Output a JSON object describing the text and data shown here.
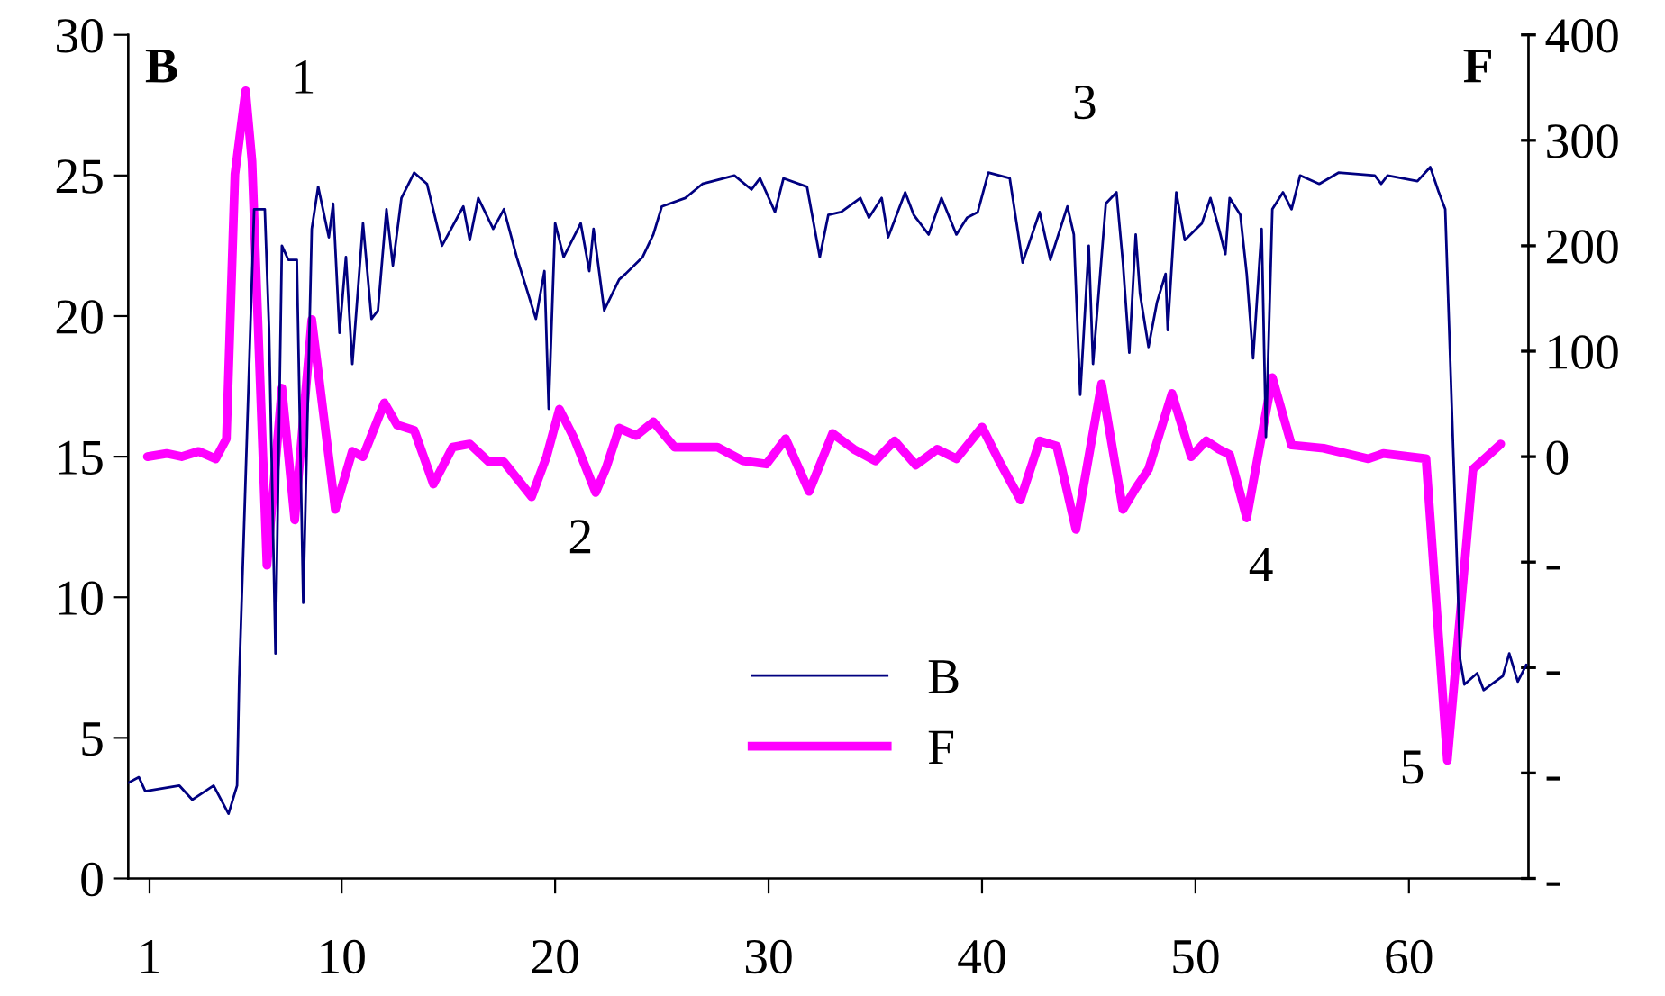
{
  "chart_data": {
    "type": "line",
    "ylabel": "B",
    "y2label": "F",
    "xlim": [
      0,
      65.6
    ],
    "xticks": [
      1,
      10,
      20,
      30,
      40,
      50,
      60
    ],
    "ylim": [
      0,
      30
    ],
    "yticks": [
      0,
      5,
      10,
      15,
      20,
      25,
      30
    ],
    "y2lim": [
      -400,
      400
    ],
    "y2ticks": [
      {
        "value": -400,
        "label": "-"
      },
      {
        "value": -300,
        "label": "-"
      },
      {
        "value": -200,
        "label": "-"
      },
      {
        "value": -100,
        "label": "-"
      },
      0,
      100,
      200,
      300,
      400
    ],
    "grid": false,
    "legend": "bottom",
    "marker": "none",
    "line_style": "solid",
    "annotations": [
      "1",
      "2",
      "3",
      "4",
      "5"
    ],
    "series": [
      {
        "name": "B",
        "color": "#000080",
        "x": [
          0,
          0.5,
          0.8,
          2.4,
          3.0,
          4.0,
          4.7,
          5.1,
          5.2,
          5.9,
          6.4,
          6.6,
          6.9,
          7.2,
          7.5,
          7.9,
          8.2,
          8.6,
          8.9,
          9.4,
          9.6,
          9.9,
          10.2,
          10.5,
          11.0,
          11.4,
          11.7,
          12.1,
          12.4,
          12.8,
          13.4,
          14.0,
          14.7,
          15.7,
          16.0,
          16.4,
          17.1,
          17.6,
          18.2,
          19.1,
          19.5,
          19.7,
          20.0,
          20.4,
          21.2,
          21.6,
          21.8,
          22.3,
          23.0,
          23.3,
          24.1,
          24.6,
          25.0,
          26.1,
          26.9,
          28.4,
          29.2,
          29.6,
          30.3,
          30.7,
          31.8,
          32.4,
          32.8,
          33.4,
          34.3,
          34.7,
          35.3,
          35.6,
          36.4,
          36.8,
          37.5,
          38.1,
          38.8,
          39.3,
          39.8,
          40.3,
          41.3,
          41.9,
          42.7,
          43.2,
          44.0,
          44.3,
          44.6,
          45.0,
          45.2,
          45.8,
          46.3,
          46.6,
          46.9,
          47.2,
          47.4,
          47.8,
          48.2,
          48.6,
          48.7,
          49.1,
          49.5,
          50.3,
          50.7,
          51.1,
          51.4,
          51.6,
          52.1,
          52.4,
          52.7,
          53.1,
          53.3,
          53.6,
          54.1,
          54.5,
          54.9,
          55.8,
          56.7,
          58.4,
          58.7,
          59.0,
          60.4,
          61.0,
          61.4,
          61.7,
          62.4,
          62.6,
          63.2,
          63.5,
          64.4,
          64.7,
          65.1,
          65.5
        ],
        "values": [
          3.4,
          3.6,
          3.1,
          3.3,
          2.8,
          3.3,
          2.3,
          3.3,
          7.1,
          23.8,
          23.8,
          19.5,
          8.0,
          22.5,
          22.0,
          22.0,
          9.8,
          23.1,
          24.6,
          22.8,
          24.0,
          19.4,
          22.1,
          18.3,
          23.3,
          19.9,
          20.2,
          23.8,
          21.8,
          24.2,
          25.1,
          24.7,
          22.5,
          23.9,
          22.7,
          24.2,
          23.1,
          23.8,
          22.1,
          19.9,
          21.6,
          16.7,
          23.3,
          22.1,
          23.3,
          21.6,
          23.1,
          20.2,
          21.3,
          21.5,
          22.1,
          22.9,
          23.9,
          24.2,
          24.7,
          25.0,
          24.5,
          24.9,
          23.7,
          24.9,
          24.6,
          22.1,
          23.6,
          23.7,
          24.2,
          23.5,
          24.2,
          22.8,
          24.4,
          23.6,
          22.9,
          24.2,
          22.9,
          23.5,
          23.7,
          25.1,
          24.9,
          21.9,
          23.7,
          22.0,
          23.9,
          22.9,
          17.2,
          22.5,
          18.3,
          24.0,
          24.4,
          21.9,
          18.7,
          22.9,
          20.8,
          18.9,
          20.5,
          21.5,
          19.5,
          24.4,
          22.7,
          23.3,
          24.2,
          23.1,
          22.2,
          24.2,
          23.6,
          21.5,
          18.5,
          23.1,
          15.7,
          23.8,
          24.4,
          23.8,
          25.0,
          24.7,
          25.1,
          25.0,
          24.7,
          25.0,
          24.8,
          25.3,
          24.4,
          23.8,
          7.8,
          6.9,
          7.3,
          6.7,
          7.2,
          8.0,
          7.0,
          7.6
        ]
      },
      {
        "name": "F",
        "color": "#ff00ff",
        "axis": "y2",
        "x": [
          0.9,
          1.8,
          2.5,
          3.3,
          4.1,
          4.6,
          5.0,
          5.5,
          5.8,
          6.5,
          7.2,
          7.8,
          8.6,
          9.7,
          10.5,
          11.0,
          12.0,
          12.6,
          13.4,
          14.3,
          15.2,
          16.0,
          16.9,
          17.6,
          18.9,
          19.6,
          20.2,
          20.9,
          21.9,
          22.4,
          23.0,
          23.8,
          24.6,
          25.6,
          27.6,
          28.8,
          29.9,
          30.8,
          31.9,
          33.0,
          34.0,
          35.0,
          35.9,
          36.9,
          37.9,
          38.8,
          40.0,
          40.8,
          41.8,
          42.7,
          43.5,
          44.4,
          45.6,
          46.6,
          47.2,
          47.8,
          48.9,
          49.8,
          50.5,
          51.1,
          51.6,
          52.4,
          53.6,
          54.5,
          56.0,
          58.1,
          58.8,
          60.8,
          61.8,
          63.0,
          64.3
        ],
        "values": [
          0,
          3,
          0,
          5,
          -2,
          17,
          268,
          347,
          280,
          -103,
          65,
          -60,
          130,
          -50,
          5,
          0,
          51,
          30,
          25,
          -26,
          9,
          12,
          -5,
          -5,
          -38,
          0,
          45,
          17,
          -34,
          -10,
          27,
          20,
          33,
          9,
          9,
          -4,
          -7,
          17,
          -33,
          22,
          7,
          -4,
          15,
          -8,
          7,
          -2,
          28,
          -4,
          -41,
          15,
          10,
          -69,
          69,
          -50,
          -30,
          -12,
          60,
          0,
          15,
          7,
          2,
          -58,
          75,
          11,
          8,
          -2,
          3,
          -2,
          -288,
          -12,
          12
        ]
      }
    ]
  }
}
